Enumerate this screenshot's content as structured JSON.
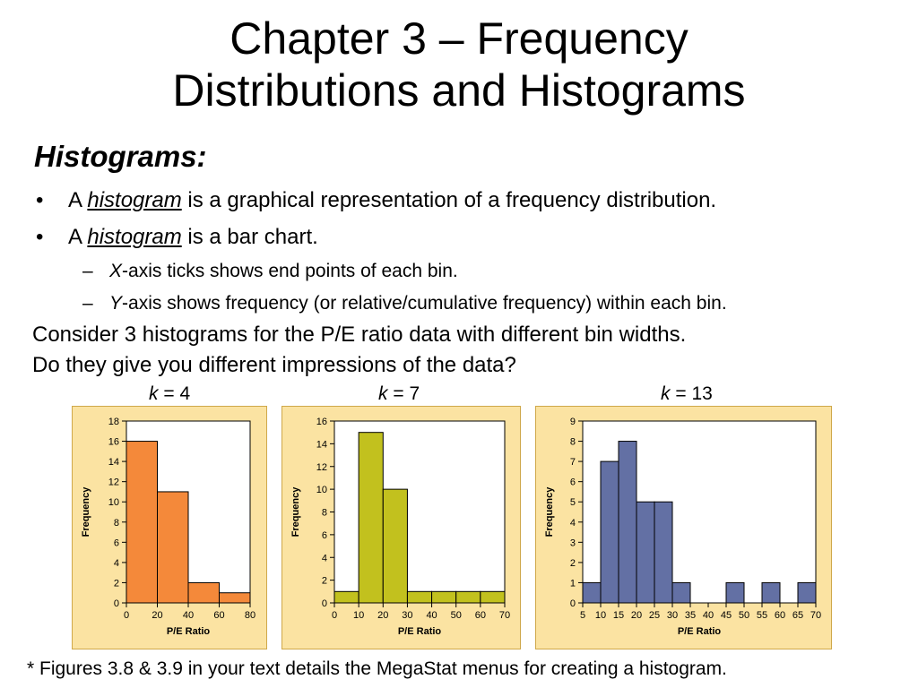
{
  "slide": {
    "title_line1": "Chapter 3 – Frequency",
    "title_line2": "Distributions and Histograms",
    "subheading": "Histograms:",
    "bullets": [
      {
        "marker": "•",
        "pre": "A ",
        "term": "histogram",
        "post": " is a graphical representation of a frequency distribution."
      },
      {
        "marker": "•",
        "pre": "A ",
        "term": "histogram",
        "post": " is a bar chart."
      }
    ],
    "subbullets": [
      {
        "marker": "–",
        "axis": "X",
        "text": "-axis ticks shows end points of each bin."
      },
      {
        "marker": "–",
        "axis": "Y",
        "text": "-axis shows frequency (or relative/cumulative frequency) within each bin."
      }
    ],
    "para1": "Consider 3 histograms for the P/E ratio data with different bin widths.",
    "para2": "Do they give you different impressions of the data?",
    "footnote": "* Figures 3.8 & 3.9 in your text details the MegaStat menus for creating a histogram."
  },
  "chart_data": [
    {
      "type": "bar",
      "label_var": "k",
      "label_value": "= 4",
      "bin_edges": [
        0,
        20,
        40,
        60,
        80
      ],
      "values": [
        16,
        11,
        2,
        1
      ],
      "x_ticks": [
        0,
        20,
        40,
        60,
        80
      ],
      "y_ticks": [
        0,
        2,
        4,
        6,
        8,
        10,
        12,
        14,
        16,
        18
      ],
      "xlim": [
        0,
        80
      ],
      "ylim": [
        0,
        18
      ],
      "xlabel": "P/E Ratio",
      "ylabel": "Frequency",
      "color": "#f4893a"
    },
    {
      "type": "bar",
      "label_var": "k",
      "label_value": "= 7",
      "bin_edges": [
        0,
        10,
        20,
        30,
        40,
        50,
        60,
        70
      ],
      "values": [
        1,
        15,
        10,
        1,
        1,
        1,
        1
      ],
      "x_ticks": [
        0,
        10,
        20,
        30,
        40,
        50,
        60,
        70
      ],
      "y_ticks": [
        0,
        2,
        4,
        6,
        8,
        10,
        12,
        14,
        16
      ],
      "xlim": [
        0,
        70
      ],
      "ylim": [
        0,
        16
      ],
      "xlabel": "P/E Ratio",
      "ylabel": "Frequency",
      "color": "#c2c11e"
    },
    {
      "type": "bar",
      "label_var": "k",
      "label_value": "= 13",
      "bin_edges": [
        5,
        10,
        15,
        20,
        25,
        30,
        35,
        40,
        45,
        50,
        55,
        60,
        65,
        70
      ],
      "values": [
        1,
        7,
        8,
        5,
        5,
        1,
        0,
        0,
        1,
        0,
        1,
        0,
        1
      ],
      "x_ticks": [
        5,
        10,
        15,
        20,
        25,
        30,
        35,
        40,
        45,
        50,
        55,
        60,
        65,
        70
      ],
      "y_ticks": [
        0,
        1,
        2,
        3,
        4,
        5,
        6,
        7,
        8,
        9
      ],
      "xlim": [
        5,
        70
      ],
      "ylim": [
        0,
        9
      ],
      "xlabel": "P/E Ratio",
      "ylabel": "Frequency",
      "color": "#6370a4"
    }
  ]
}
